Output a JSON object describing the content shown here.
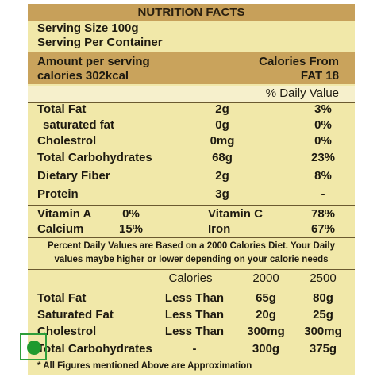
{
  "header": {
    "title": "NUTRITION FACTS"
  },
  "serving": {
    "size": "Serving Size 100g",
    "per_container": "Serving Per Container"
  },
  "amount": {
    "left": [
      "Amount per serving",
      "calories 302kcal"
    ],
    "right": [
      "Calories From",
      "FAT 18"
    ]
  },
  "daily_value_header": "% Daily Value",
  "nutrients": [
    [
      "Total Fat",
      "2g",
      "3%"
    ],
    [
      "saturated fat",
      "0g",
      "0%"
    ],
    [
      "Cholestrol",
      "0mg",
      "0%"
    ],
    [
      "Total Carbohydrates",
      "68g",
      "23%"
    ],
    [
      "Dietary Fiber",
      "2g",
      "8%"
    ],
    [
      "Protein",
      "3g",
      "-"
    ]
  ],
  "vitamins": [
    [
      "Vitamin A",
      "0%",
      "Vitamin C",
      "78%"
    ],
    [
      "Calcium",
      "15%",
      "Iron",
      "67%"
    ]
  ],
  "footnote": [
    "Percent Daily Values are Based on a 2000 Calories Diet. Your Daily",
    "values maybe higher or lower depending  on your calorie needs"
  ],
  "table": {
    "header": [
      "Calories",
      "2000",
      "2500"
    ],
    "rows": [
      [
        "Total Fat",
        "Less Than",
        "65g",
        "80g"
      ],
      [
        "Saturated Fat",
        "Less Than",
        "20g",
        "25g"
      ],
      [
        "Cholestrol",
        "Less Than",
        "300mg",
        "300mg"
      ],
      [
        "Total Carbohydrates",
        "-",
        "300g",
        "375g"
      ]
    ]
  },
  "footer_note": "* All Figures mentioned Above are Approximation"
}
